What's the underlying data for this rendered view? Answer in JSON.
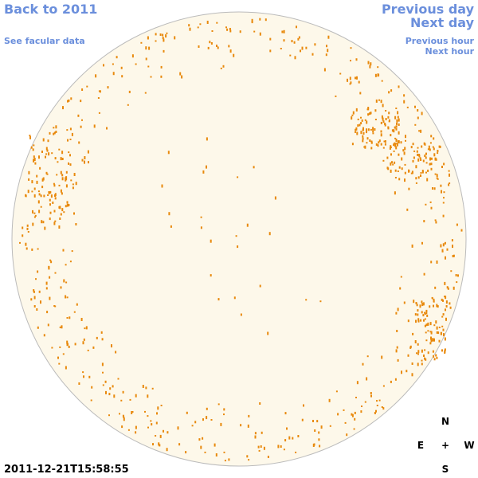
{
  "nav": {
    "back": "Back to 2011",
    "facular": "See facular data",
    "previous_day": "Previous day",
    "next_day": "Next day",
    "previous_hour": "Previous hour",
    "next_hour": "Next hour"
  },
  "timestamp": "2011-12-21T15:58:55",
  "compass": {
    "north": "N",
    "east": "E",
    "center": "+",
    "west": "W",
    "south": "S"
  }
}
